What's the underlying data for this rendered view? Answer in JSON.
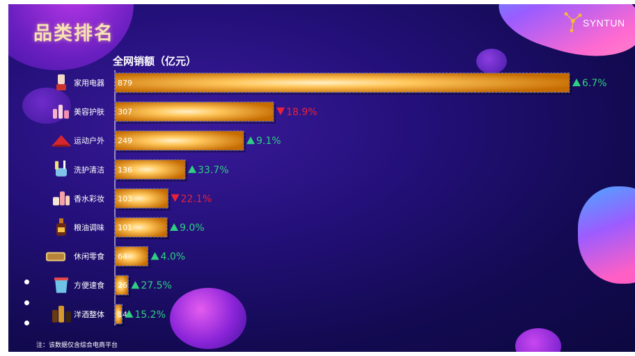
{
  "title": "品类排名",
  "logo": {
    "text": "SYNTUN"
  },
  "footnote": "注：该数据仅含综合电商平台",
  "colors": {
    "up": "#2fcf82",
    "down": "#e8223a",
    "bar_core": "#ffd27a",
    "bar_edge": "#c96f00"
  },
  "chart_data": {
    "type": "bar",
    "orientation": "horizontal",
    "ylabel": "全网销额（亿元）",
    "categories": [
      "家用电器",
      "美容护肤",
      "运动户外",
      "洗护清洁",
      "香水彩妆",
      "粮油调味",
      "休闲零食",
      "方便速食",
      "洋酒整体"
    ],
    "values": [
      879,
      307,
      249,
      136,
      103,
      101,
      64,
      26,
      14
    ],
    "changes": [
      "6.7%",
      "18.9%",
      "9.1%",
      "33.7%",
      "22.1%",
      "9.0%",
      "4.0%",
      "27.5%",
      "15.2%"
    ],
    "directions": [
      "up",
      "down",
      "up",
      "up",
      "down",
      "up",
      "up",
      "up",
      "up"
    ],
    "icons": [
      "blender-icon",
      "cosmetics-bottles-icon",
      "outdoor-gear-icon",
      "cleaning-supplies-icon",
      "perfume-makeup-icon",
      "soy-sauce-bottle-icon",
      "snack-box-icon",
      "instant-noodle-cup-icon",
      "liquor-bottles-icon"
    ],
    "xlim": [
      0,
      879
    ]
  }
}
